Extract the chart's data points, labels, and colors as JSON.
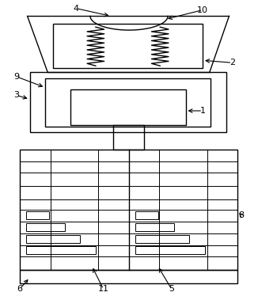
{
  "fig_width": 3.26,
  "fig_height": 3.74,
  "dpi": 100,
  "bg_color": "#ffffff",
  "line_color": "#000000",
  "lw": 1.0,
  "lw2": 0.7
}
